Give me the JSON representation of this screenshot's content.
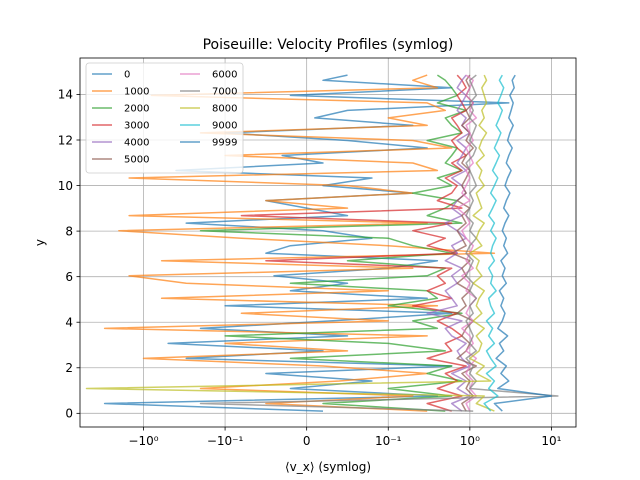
{
  "chart_data": {
    "type": "line",
    "title": "Poiseuille: Velocity Profiles (symlog)",
    "xlabel": "⟨v_x⟩ (symlog)",
    "ylabel": "y",
    "xscale": "symlog",
    "linthresh": 0.1,
    "xlim": [
      -6,
      20
    ],
    "ylim": [
      -0.6,
      15.6
    ],
    "grid": true,
    "legend_placement": "top-left",
    "legend_columns": 2,
    "x_ticks": [
      {
        "value": -1,
        "label": "−10⁰"
      },
      {
        "value": -0.1,
        "label": "−10⁻¹"
      },
      {
        "value": 0,
        "label": "0"
      },
      {
        "value": 0.1,
        "label": "10⁻¹"
      },
      {
        "value": 1,
        "label": "10⁰"
      },
      {
        "value": 10,
        "label": "10¹"
      }
    ],
    "y_ticks": [
      {
        "value": 0,
        "label": "0"
      },
      {
        "value": 2,
        "label": "2"
      },
      {
        "value": 4,
        "label": "4"
      },
      {
        "value": 6,
        "label": "6"
      },
      {
        "value": 8,
        "label": "8"
      },
      {
        "value": 10,
        "label": "10"
      },
      {
        "value": 12,
        "label": "12"
      },
      {
        "value": 14,
        "label": "14"
      }
    ],
    "y": [
      0.1,
      0.43,
      0.76,
      1.09,
      1.42,
      1.75,
      2.08,
      2.41,
      2.74,
      3.07,
      3.4,
      3.73,
      4.06,
      4.39,
      4.72,
      5.05,
      5.38,
      5.71,
      6.04,
      6.37,
      6.7,
      7.03,
      7.36,
      7.69,
      8.02,
      8.35,
      8.68,
      9.01,
      9.34,
      9.67,
      10.0,
      10.33,
      10.66,
      10.99,
      11.32,
      11.65,
      11.98,
      12.31,
      12.64,
      12.97,
      13.3,
      13.63,
      13.96,
      14.29,
      14.62,
      14.85
    ],
    "series": [
      {
        "name": "0",
        "color": "#1f77b4",
        "values": [
          0.02,
          -3.0,
          0.4,
          -0.02,
          0.08,
          -0.05,
          0.6,
          -0.3,
          0.02,
          -0.5,
          0.05,
          -0.2,
          0.03,
          0.6,
          -0.1,
          0.3,
          -0.02,
          0.05,
          -0.04,
          0.1,
          0.4,
          -0.05,
          -0.02,
          0.08,
          0.02,
          -0.3,
          0.05,
          0.0,
          -0.05,
          0.2,
          0.02,
          0.08,
          -0.4,
          0.02,
          -0.03,
          0.3,
          0.05,
          -0.1,
          0.2,
          0.01,
          0.05,
          3.0,
          -0.02,
          0.6,
          0.02,
          0.05
        ]
      },
      {
        "name": "1000",
        "color": "#ff7f0e",
        "values": [
          0.3,
          -0.05,
          0.2,
          -0.2,
          0.04,
          0.3,
          0.02,
          -1.0,
          0.05,
          -0.1,
          0.3,
          -3.0,
          0.1,
          -0.08,
          0.4,
          -0.6,
          0.1,
          -0.3,
          -1.5,
          0.2,
          -0.6,
          2.0,
          0.1,
          -0.08,
          -2.0,
          0.3,
          -1.5,
          0.05,
          -0.05,
          0.2,
          0.05,
          -1.5,
          0.4,
          0.2,
          -0.1,
          0.6,
          0.2,
          -0.2,
          0.3,
          0.1,
          0.5,
          0.3,
          -0.8,
          0.4,
          0.2,
          0.3
        ]
      },
      {
        "name": "2000",
        "color": "#2ca02c",
        "values": [
          0.5,
          0.02,
          0.6,
          0.1,
          0.8,
          0.3,
          0.6,
          -0.02,
          0.5,
          0.1,
          -0.1,
          0.4,
          0.2,
          0.8,
          0.1,
          0.4,
          0.3,
          -0.02,
          0.3,
          0.5,
          0.05,
          0.6,
          0.2,
          0.1,
          -0.2,
          0.8,
          0.3,
          0.5,
          0.7,
          0.2,
          0.6,
          0.4,
          0.8,
          0.5,
          0.6,
          0.7,
          0.3,
          0.8,
          0.6,
          0.5,
          0.9,
          0.4,
          0.7,
          0.6,
          0.5,
          0.4
        ]
      },
      {
        "name": "3000",
        "color": "#d62728",
        "values": [
          0.6,
          0.3,
          0.8,
          0.4,
          0.7,
          0.5,
          0.9,
          0.3,
          0.6,
          0.5,
          0.8,
          0.6,
          0.4,
          0.7,
          0.2,
          0.6,
          0.3,
          0.5,
          0.4,
          0.6,
          -0.05,
          0.7,
          0.3,
          0.5,
          0.2,
          0.6,
          -0.08,
          0.8,
          0.4,
          0.6,
          0.7,
          0.5,
          0.8,
          0.6,
          0.9,
          0.7,
          0.6,
          0.8,
          0.7,
          0.6,
          0.9,
          0.8,
          0.7,
          0.9,
          0.8,
          0.7
        ]
      },
      {
        "name": "4000",
        "color": "#9467bd",
        "values": [
          0.8,
          0.6,
          1.0,
          0.7,
          0.9,
          0.6,
          1.0,
          0.8,
          0.7,
          0.9,
          0.6,
          0.5,
          0.8,
          0.3,
          0.7,
          0.6,
          0.5,
          0.7,
          0.6,
          0.8,
          0.5,
          0.7,
          0.6,
          0.9,
          0.7,
          0.5,
          0.8,
          0.6,
          0.7,
          0.9,
          0.8,
          0.6,
          0.9,
          0.7,
          0.8,
          0.9,
          0.7,
          1.0,
          0.8,
          0.9,
          0.7,
          0.8,
          0.9,
          0.7,
          0.8,
          0.9
        ]
      },
      {
        "name": "5000",
        "color": "#8c564b",
        "values": [
          0.9,
          0.8,
          1.1,
          0.9,
          1.0,
          0.8,
          1.2,
          0.7,
          0.9,
          1.0,
          0.8,
          0.9,
          1.1,
          0.7,
          0.9,
          0.8,
          1.0,
          0.7,
          0.9,
          0.8,
          1.0,
          0.6,
          0.9,
          0.8,
          0.7,
          0.9,
          0.8,
          1.0,
          0.7,
          0.9,
          0.8,
          0.9,
          1.0,
          0.8,
          0.9,
          1.1,
          0.9,
          1.0,
          0.8,
          1.0,
          0.9,
          1.1,
          0.9,
          1.0,
          0.9,
          1.0
        ]
      },
      {
        "name": "6000",
        "color": "#e377c2",
        "values": [
          1.0,
          0.9,
          1.2,
          1.0,
          1.1,
          0.9,
          1.0,
          1.2,
          0.9,
          1.1,
          1.0,
          0.8,
          1.1,
          0.9,
          1.0,
          1.2,
          0.9,
          1.0,
          0.8,
          1.1,
          0.9,
          1.0,
          1.1,
          0.9,
          0.8,
          1.0,
          0.9,
          0.7,
          1.0,
          0.8,
          0.9,
          1.0,
          0.9,
          1.1,
          1.0,
          0.9,
          1.1,
          1.0,
          0.9,
          1.2,
          1.0,
          1.1,
          0.9,
          1.0,
          1.1,
          0.9
        ]
      },
      {
        "name": "7000",
        "color": "#7f7f7f",
        "values": [
          1.1,
          -0.2,
          12.0,
          1.0,
          1.2,
          1.0,
          1.1,
          0.9,
          1.2,
          1.0,
          1.1,
          1.0,
          0.9,
          1.1,
          1.0,
          1.2,
          1.0,
          1.1,
          0.9,
          1.0,
          1.1,
          0.9,
          1.0,
          1.2,
          1.0,
          1.1,
          0.9,
          1.0,
          1.1,
          1.0,
          1.2,
          1.1,
          1.0,
          0.9,
          1.1,
          1.2,
          1.0,
          1.1,
          1.2,
          1.0,
          1.1,
          1.0,
          1.2,
          1.1,
          1.0,
          1.2
        ]
      },
      {
        "name": "8000",
        "color": "#bcbd22",
        "values": [
          2.0,
          1.2,
          1.5,
          -5.0,
          1.8,
          1.2,
          1.5,
          1.0,
          1.3,
          1.4,
          1.2,
          1.5,
          1.1,
          1.4,
          1.2,
          1.3,
          1.5,
          1.1,
          1.4,
          1.2,
          1.3,
          1.0,
          1.4,
          1.2,
          1.3,
          1.5,
          1.1,
          1.4,
          1.3,
          1.2,
          1.5,
          1.3,
          1.4,
          1.2,
          1.5,
          1.3,
          1.4,
          1.6,
          1.3,
          1.5,
          1.4,
          1.6,
          1.5,
          1.4,
          1.6,
          1.5
        ]
      },
      {
        "name": "9000",
        "color": "#17becf",
        "values": [
          1.8,
          1.5,
          2.2,
          1.7,
          2.0,
          1.6,
          2.1,
          1.8,
          1.6,
          2.0,
          1.7,
          1.9,
          1.6,
          2.0,
          1.8,
          1.7,
          2.1,
          1.8,
          1.9,
          1.7,
          2.0,
          1.8,
          1.9,
          2.1,
          1.8,
          2.0,
          1.7,
          1.9,
          2.1,
          1.8,
          2.0,
          2.2,
          1.9,
          2.1,
          2.3,
          2.0,
          2.2,
          2.4,
          2.1,
          2.3,
          2.5,
          2.2,
          2.4,
          2.6,
          2.3,
          2.5
        ]
      },
      {
        "name": "9999",
        "color": "#1f77b4",
        "values": [
          2.5,
          2.0,
          10.0,
          2.2,
          3.0,
          2.4,
          2.8,
          2.1,
          2.6,
          2.3,
          2.9,
          2.2,
          2.5,
          2.7,
          2.4,
          2.6,
          2.3,
          2.8,
          2.5,
          2.7,
          2.4,
          2.9,
          2.6,
          2.8,
          2.5,
          2.7,
          3.0,
          2.6,
          2.8,
          3.1,
          2.7,
          2.9,
          3.2,
          2.8,
          3.0,
          3.3,
          2.9,
          3.1,
          3.4,
          3.0,
          3.2,
          3.4,
          3.1,
          3.5,
          3.3,
          3.6
        ]
      }
    ]
  }
}
